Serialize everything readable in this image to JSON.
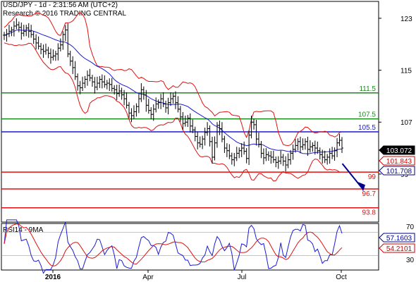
{
  "header": {
    "line1": "USD/JPY - 1d - 2:31:56 AM (UTC+2)",
    "line2": "Research © 2016 TRADING CENTRAL"
  },
  "rsi": {
    "label": "RSI14 - 9MA",
    "value": "57.1603",
    "ma_value": "54.2101",
    "axis_ticks": [
      70,
      30
    ]
  },
  "colors": {
    "price": "#000000",
    "ma": "#1a1ad6",
    "bands": "#e01010",
    "support": "#e01010",
    "resistance": "#1a8a1a",
    "pivot": "#1a1ad6",
    "rsi": "#1a1ad6",
    "rsi_ma": "#e01010",
    "value_box_price": "#000000",
    "value_box_red": "#d00000",
    "value_box_blue": "#00008b"
  },
  "chart_data": {
    "type": "line",
    "y_ticks": [
      123,
      115,
      107,
      99
    ],
    "ylim": [
      91.6,
      125.6
    ],
    "x_tick_labels": [
      "2016",
      "Apr",
      "Jul",
      "Oct"
    ],
    "levels": [
      {
        "label": "111.5",
        "value": 111.5,
        "kind": "resistance"
      },
      {
        "label": "107.5",
        "value": 107.5,
        "kind": "resistance"
      },
      {
        "label": "105.5",
        "value": 105.5,
        "kind": "pivot"
      },
      {
        "label": "99",
        "value": 99.3,
        "kind": "support"
      },
      {
        "label": "96.7",
        "value": 96.7,
        "kind": "support"
      },
      {
        "label": "93.8",
        "value": 93.8,
        "kind": "support"
      }
    ],
    "value_boxes": [
      {
        "label": "103.072",
        "value": 103.07,
        "kind": "price"
      },
      {
        "label": "101.843",
        "value": 101.84,
        "kind": "red"
      },
      {
        "label": "101.708",
        "value": 101.71,
        "kind": "blue"
      }
    ],
    "series": [
      {
        "values": [
          120.4,
          120.6,
          121.0,
          121.2,
          121.8,
          122.0,
          121.6,
          120.7,
          121.0,
          121.5,
          121.0,
          120.5,
          119.8,
          119.2,
          118.7,
          118.2,
          117.9,
          118.1,
          117.6,
          117.0,
          117.2,
          117.5,
          118.4,
          118.9,
          120.5,
          121.2,
          117.5,
          116.4,
          115.4,
          114.0,
          112.6,
          112.3,
          113.0,
          113.6,
          114.2,
          113.8,
          113.2,
          112.4,
          113.0,
          113.6,
          113.2,
          112.8,
          113.0,
          112.8,
          112.2,
          112.0,
          111.4,
          111.8,
          111.2,
          110.6,
          109.6,
          108.4,
          108.0,
          108.6,
          109.4,
          110.6,
          112.0,
          111.2,
          109.6,
          108.8,
          108.2,
          109.0,
          109.8,
          110.0,
          110.6,
          109.8,
          109.2,
          110.0,
          110.6,
          111.0,
          110.0,
          109.0,
          107.8,
          106.8,
          107.0,
          107.6,
          106.4,
          105.8,
          104.8,
          103.8,
          103.6,
          104.4,
          105.4,
          106.0,
          104.0,
          101.6,
          103.8,
          106.5,
          106.0,
          104.4,
          103.0,
          102.6,
          101.8,
          101.2,
          101.5,
          102.2,
          102.6,
          103.0,
          102.5,
          101.4,
          105.0,
          107.0,
          106.6,
          104.4,
          103.6,
          102.2,
          101.5,
          102.0,
          101.8,
          101.6,
          101.2,
          100.8,
          101.0,
          101.6,
          101.0,
          100.4,
          101.2,
          102.2,
          102.8,
          103.4,
          104.0,
          103.2,
          103.5,
          104.0,
          102.8,
          103.2,
          103.4,
          103.0,
          102.6,
          102.0,
          101.6,
          101.2,
          101.6,
          102.2,
          101.8,
          102.6,
          103.8,
          104.2,
          103.0
        ]
      }
    ]
  }
}
